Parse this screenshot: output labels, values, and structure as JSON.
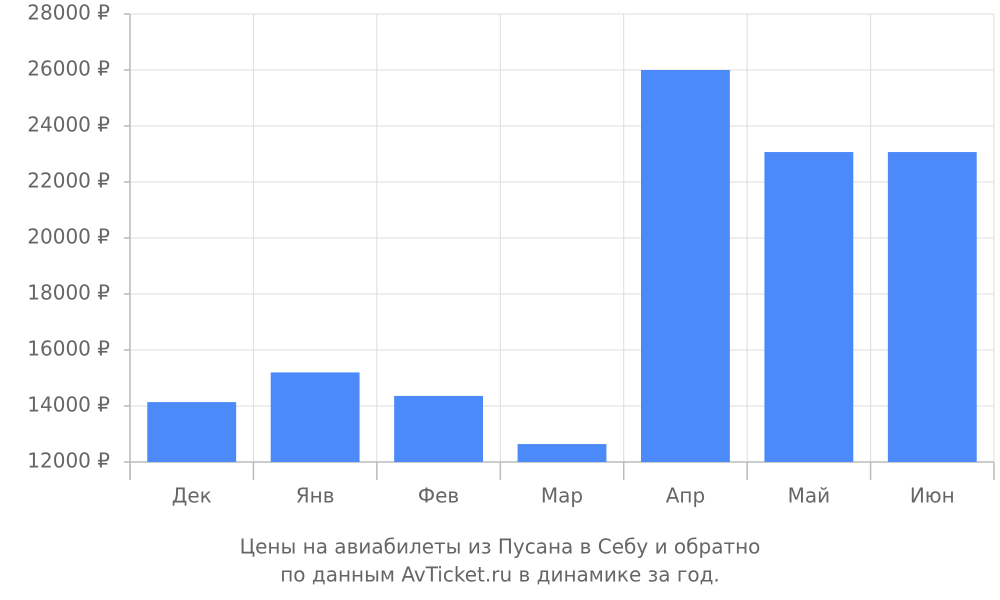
{
  "chart_data": {
    "type": "bar",
    "title": "Цены на авиабилеты из Пусана в Себу и обратно",
    "subtitle": "по данным AvTicket.ru в динамике за год.",
    "categories": [
      "Дек",
      "Янв",
      "Фев",
      "Мар",
      "Апр",
      "Май",
      "Июн"
    ],
    "values": [
      14140,
      15200,
      14360,
      12640,
      26000,
      23070,
      23070
    ],
    "color": "#4d8af9",
    "ylim": [
      12000,
      28000
    ],
    "yticks": [
      {
        "value": 12000,
        "label": "12000 ₽"
      },
      {
        "value": 14000,
        "label": "14000 ₽"
      },
      {
        "value": 16000,
        "label": "16000 ₽"
      },
      {
        "value": 18000,
        "label": "18000 ₽"
      },
      {
        "value": 20000,
        "label": "20000 ₽"
      },
      {
        "value": 22000,
        "label": "22000 ₽"
      },
      {
        "value": 24000,
        "label": "24000 ₽"
      },
      {
        "value": 26000,
        "label": "26000 ₽"
      },
      {
        "value": 28000,
        "label": "28000 ₽"
      }
    ],
    "grid": true
  }
}
